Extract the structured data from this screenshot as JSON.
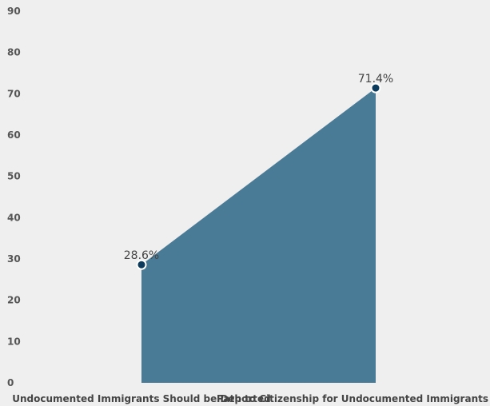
{
  "chart_data": {
    "type": "area",
    "categories": [
      "Undocumented Immigrants Should be Deported",
      "Path to Citizenship for Undocumented Immigrants"
    ],
    "values": [
      28.6,
      71.4
    ],
    "data_labels": [
      "28.6%",
      "71.4%"
    ],
    "y_ticks": [
      "0",
      "10",
      "20",
      "30",
      "40",
      "50",
      "60",
      "70",
      "80",
      "90"
    ],
    "ylim": [
      0,
      90
    ],
    "grid": false,
    "legend": "none",
    "colors": {
      "fill": "#4a7b96",
      "marker_fill": "#0d3b5e",
      "marker_stroke": "#ffffff",
      "background": "#efefef"
    }
  }
}
